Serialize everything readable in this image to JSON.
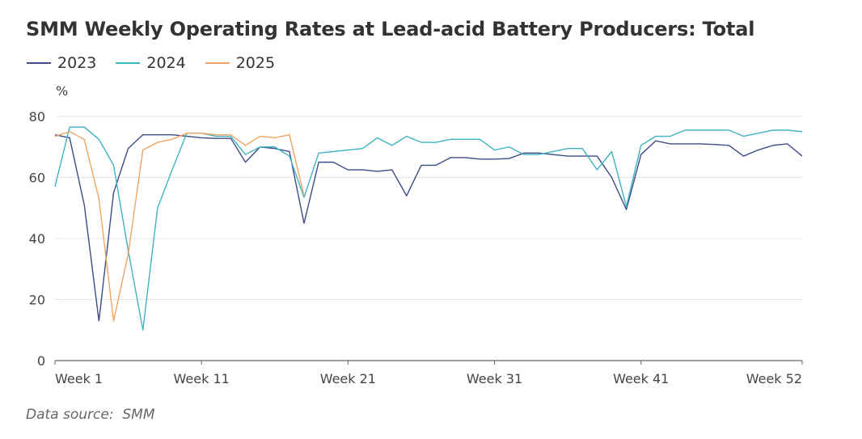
{
  "chart_data": {
    "type": "line",
    "title": "SMM Weekly Operating Rates at Lead-acid Battery Producers: Total",
    "ylabel": "%",
    "ylim": [
      0,
      80
    ],
    "yticks": [
      0,
      20,
      40,
      60,
      80
    ],
    "xlim": [
      1,
      52
    ],
    "xticks": [
      {
        "week": 1,
        "label": "Week 1"
      },
      {
        "week": 11,
        "label": "Week 11"
      },
      {
        "week": 21,
        "label": "Week 21"
      },
      {
        "week": 31,
        "label": "Week 31"
      },
      {
        "week": 41,
        "label": "Week 41"
      },
      {
        "week": 52,
        "label": "Week 52"
      }
    ],
    "grid": true,
    "legend_position": "top-left",
    "source": "Data source:  SMM",
    "series": [
      {
        "name": "2023",
        "color": "#3d4b86",
        "values": [
          74,
          73,
          51,
          13,
          55,
          69.5,
          74,
          74,
          74,
          73.5,
          73,
          72.8,
          72.8,
          65,
          70,
          69.5,
          68.5,
          45,
          65,
          65,
          62.5,
          62.5,
          62,
          62.5,
          54,
          64,
          64,
          66.5,
          66.5,
          66,
          66,
          66.2,
          68,
          68,
          67.5,
          67,
          67,
          67,
          60,
          49.5,
          67.5,
          72,
          71,
          71,
          71,
          70.8,
          70.5,
          67,
          69,
          70.5,
          71,
          67
        ]
      },
      {
        "name": "2024",
        "color": "#3fb3c2",
        "values": [
          57,
          76.5,
          76.5,
          72.5,
          64,
          36,
          10,
          50,
          62.5,
          74.5,
          74.5,
          73.5,
          73.5,
          67.5,
          70,
          70,
          67,
          53.5,
          68,
          68.5,
          69,
          69.5,
          73,
          70.5,
          73.5,
          71.5,
          71.5,
          72.5,
          72.5,
          72.5,
          69,
          70,
          67.5,
          67.5,
          68.5,
          69.5,
          69.5,
          62.5,
          68.5,
          50.5,
          70.5,
          73.5,
          73.5,
          75.5,
          75.5,
          75.5,
          75.5,
          73.5,
          74.5,
          75.5,
          75.5,
          75
        ]
      },
      {
        "name": "2025",
        "color": "#f0a561",
        "values": [
          73.5,
          75,
          72.5,
          53,
          13,
          35,
          69,
          71.5,
          72.5,
          74.5,
          74.5,
          74,
          74,
          70.5,
          73.5,
          73,
          74,
          54
        ]
      }
    ]
  }
}
